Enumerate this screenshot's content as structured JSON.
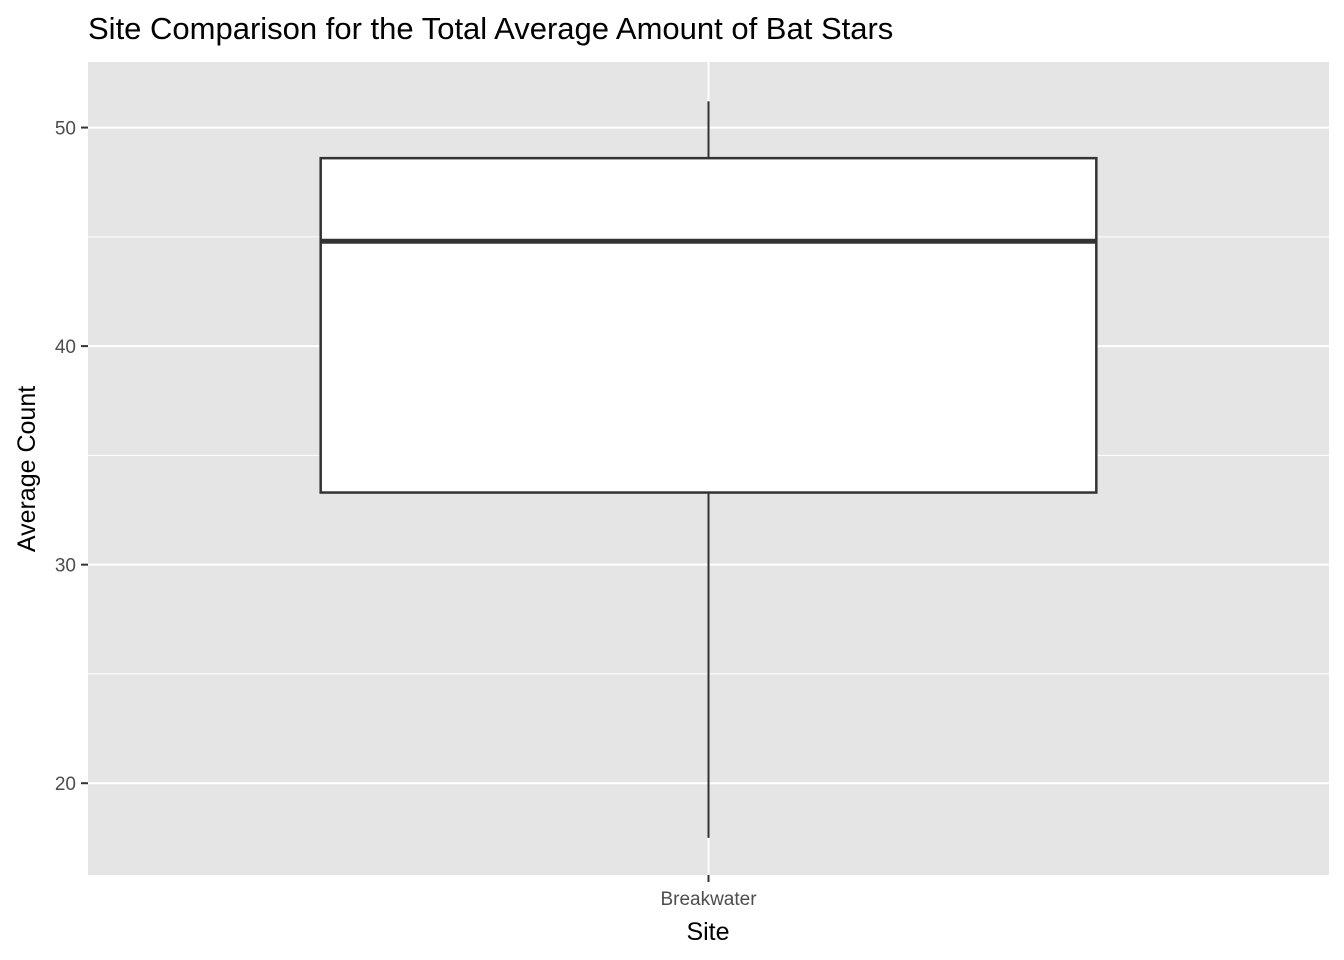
{
  "chart_data": {
    "type": "boxplot",
    "title": "Site Comparison for the Total Average Amount of Bat Stars",
    "xlabel": "Site",
    "ylabel": "Average Count",
    "categories": [
      "Breakwater"
    ],
    "boxes": [
      {
        "category": "Breakwater",
        "whisker_low": 17.5,
        "q1": 33.3,
        "median": 44.8,
        "q3": 48.6,
        "whisker_high": 51.2
      }
    ],
    "y_ticks": [
      20,
      30,
      40,
      50
    ],
    "y_minor_ticks": [
      25,
      35,
      45
    ],
    "ylim": [
      15.8,
      53.0
    ],
    "grid": true,
    "legend": "none",
    "colors": {
      "panel_background": "#e5e5e5",
      "grid_line": "#ffffff",
      "box_fill": "#ffffff",
      "box_outline": "#333333",
      "tick_label": "#4d4d4d",
      "tick_mark": "#333333"
    }
  }
}
